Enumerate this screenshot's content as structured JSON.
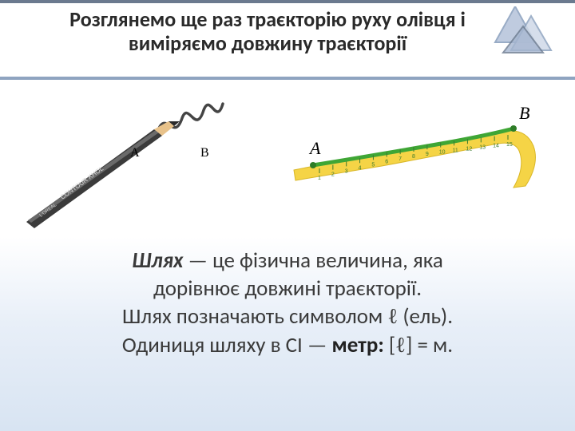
{
  "title": "Розглянемо ще раз траєкторію руху олівця і виміряємо довжину траєкторії",
  "pencil": {
    "label_A": "А",
    "label_B": "В",
    "brand_text": "CONTOUR KHOL",
    "brand_small": "L'OREAL",
    "body_color": "#3b3b3b",
    "tip_wood": "#e8c28a",
    "tip_lead": "#2a2a2a",
    "squiggle_color": "#444444"
  },
  "ruler": {
    "label_A": "A",
    "label_B": "B",
    "tape_color": "#f5d446",
    "tape_shadow": "#d9b728",
    "curve_color": "#3fa635",
    "tick_color": "#3a7a2e",
    "numbers": [
      "1",
      "2",
      "3",
      "4",
      "5",
      "6",
      "7",
      "8",
      "9",
      "10",
      "11",
      "12",
      "13",
      "14",
      "15"
    ]
  },
  "definition": {
    "term": "Шлях",
    "line1_rest": " — це фізична величина, яка",
    "line2": "дорівнює довжині  траєкторії.",
    "line3_a": "Шлях позначають символом ",
    "ell": "ℓ",
    "line3_b": " (ель).",
    "line4_a": "Одиниця шляху в СІ — ",
    "unit_word": "метр:",
    "line4_b": " [",
    "line4_c": "] = м."
  },
  "deco": {
    "tri_fill": "#b9c6dc",
    "tri_stroke": "#8fa4c0"
  }
}
